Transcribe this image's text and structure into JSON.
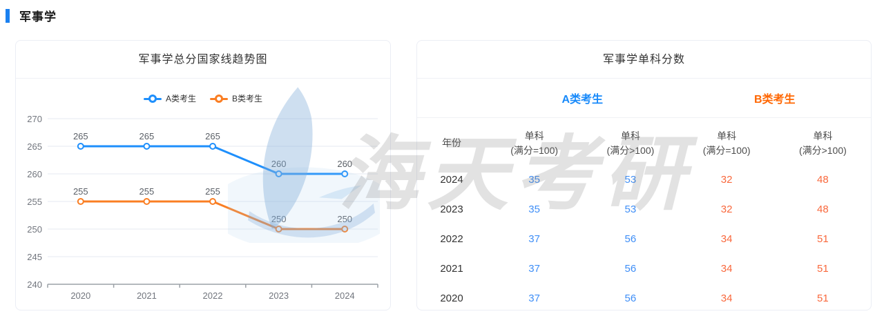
{
  "page": {
    "title": "军事学"
  },
  "trend_panel": {
    "title": "军事学总分国家线趋势图"
  },
  "chart_data": {
    "type": "line",
    "title": "军事学总分国家线趋势图",
    "categories": [
      "2020",
      "2021",
      "2022",
      "2023",
      "2024"
    ],
    "series": [
      {
        "name": "A类考生",
        "color": "#1e8ffc",
        "values": [
          265,
          265,
          265,
          260,
          260
        ]
      },
      {
        "name": "B类考生",
        "color": "#fa7e23",
        "values": [
          255,
          255,
          255,
          250,
          250
        ]
      }
    ],
    "ylim": [
      240,
      270
    ],
    "yticks": [
      240,
      245,
      250,
      255,
      260,
      265,
      270
    ],
    "grid": true,
    "legend_position": "top",
    "data_labels": true
  },
  "score_panel": {
    "title": "军事学单科分数",
    "year_header": "年份",
    "group_headers": [
      {
        "label": "A类考生",
        "color": "#1789fa"
      },
      {
        "label": "B类考生",
        "color": "#ff6600"
      }
    ],
    "sub_headers": [
      {
        "top": "单科",
        "bottom": "(满分=100)"
      },
      {
        "top": "单科",
        "bottom": "(满分>100)"
      },
      {
        "top": "单科",
        "bottom": "(满分=100)"
      },
      {
        "top": "单科",
        "bottom": "(满分>100)"
      }
    ],
    "rows": [
      {
        "year": "2024",
        "values": [
          "35",
          "53",
          "32",
          "48"
        ]
      },
      {
        "year": "2023",
        "values": [
          "35",
          "53",
          "32",
          "48"
        ]
      },
      {
        "year": "2022",
        "values": [
          "37",
          "56",
          "34",
          "51"
        ]
      },
      {
        "year": "2021",
        "values": [
          "37",
          "56",
          "34",
          "51"
        ]
      },
      {
        "year": "2020",
        "values": [
          "37",
          "56",
          "34",
          "51"
        ]
      }
    ]
  },
  "watermark": {
    "text": "海天考研",
    "logo": "haitian-logo"
  },
  "colors": {
    "accent_blue": "#1a80f0",
    "series_a_blue": "#1e8ffc",
    "series_b_orange": "#fa7e23",
    "table_blue": "#3e8ef7",
    "table_orange": "#f9683c",
    "grid_line": "#e4e9f2",
    "axis_line": "#9aa0a6"
  }
}
